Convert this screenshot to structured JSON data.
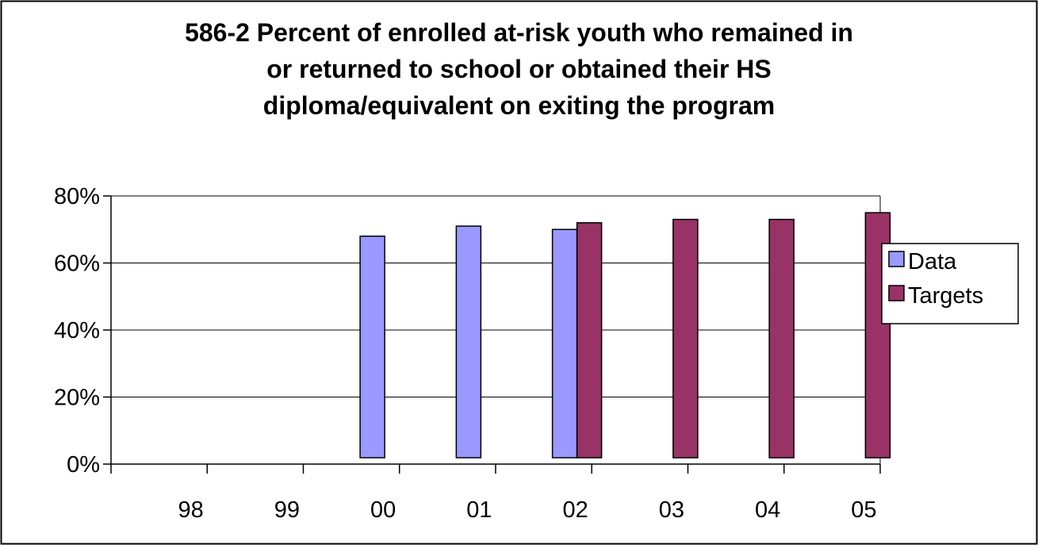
{
  "chart_data": {
    "type": "bar",
    "title_lines": [
      "586-2 Percent of enrolled at-risk youth who remained in",
      "or returned to school or obtained their HS",
      "diploma/equivalent on exiting the program"
    ],
    "categories": [
      "98",
      "99",
      "00",
      "01",
      "02",
      "03",
      "04",
      "05"
    ],
    "series": [
      {
        "name": "Data",
        "color": "#9999FF",
        "values": [
          null,
          null,
          68,
          71,
          70,
          null,
          null,
          null
        ]
      },
      {
        "name": "Targets",
        "color": "#993366",
        "values": [
          null,
          null,
          null,
          null,
          72,
          73,
          73,
          75
        ]
      }
    ],
    "ylim": [
      0,
      80
    ],
    "yticks": [
      "0%",
      "20%",
      "40%",
      "60%",
      "80%"
    ],
    "ytick_values": [
      0,
      20,
      40,
      60,
      80
    ],
    "grid": true,
    "legend_position": "right"
  }
}
